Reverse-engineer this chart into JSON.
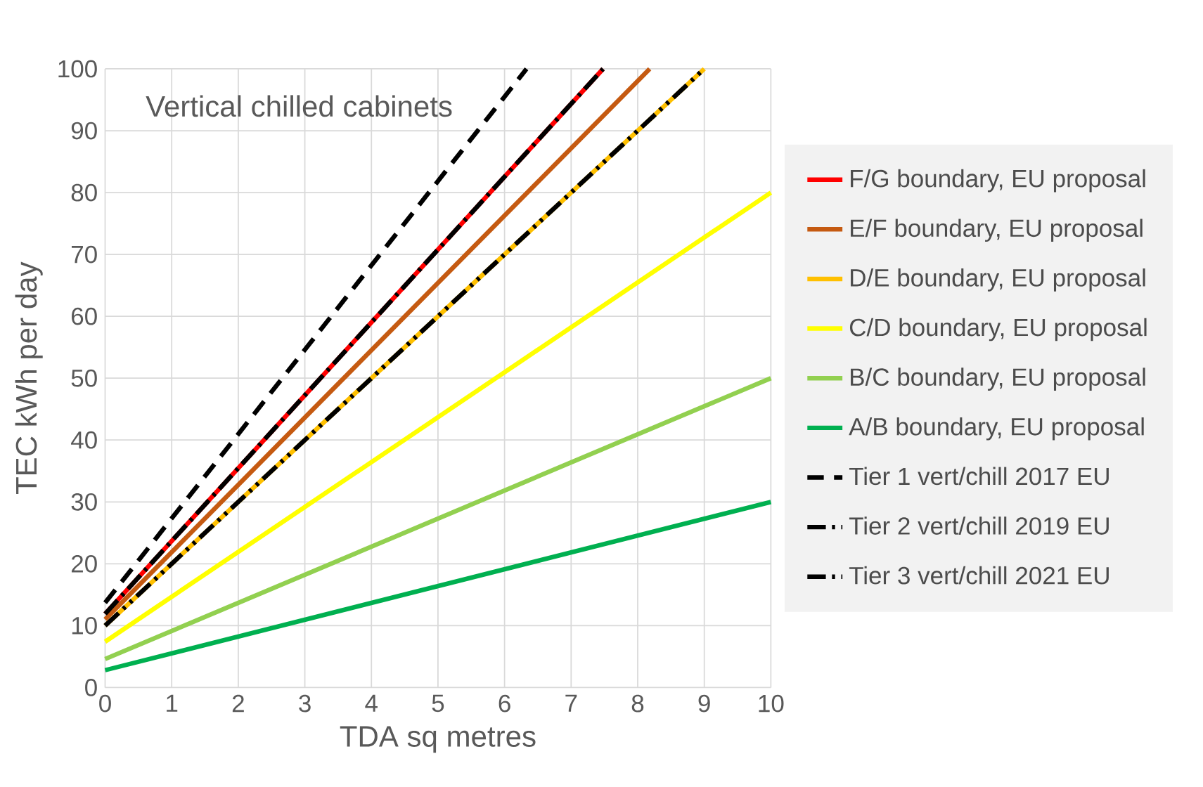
{
  "chart_data": {
    "type": "line",
    "xlabel": "TDA sq metres",
    "ylabel": "TEC  kWh per day",
    "annotations": [
      "Vertical chilled cabinets"
    ],
    "xlim": [
      0,
      10
    ],
    "ylim": [
      0,
      100
    ],
    "xticks": [
      0,
      1,
      2,
      3,
      4,
      5,
      6,
      7,
      8,
      9,
      10
    ],
    "yticks": [
      0,
      10,
      20,
      30,
      40,
      50,
      60,
      70,
      80,
      90,
      100
    ],
    "grid": true,
    "legend": "right",
    "marker": "none",
    "series": [
      {
        "name": "F/G boundary, EU proposal",
        "color": "#ff0000",
        "line_style": "solid",
        "x": [
          0,
          7.48
        ],
        "values": [
          11.9,
          100
        ]
      },
      {
        "name": "E/F boundary, EU proposal",
        "color": "#c55a11",
        "line_style": "solid",
        "x": [
          0,
          8.18
        ],
        "values": [
          11,
          100
        ]
      },
      {
        "name": "D/E boundary, EU proposal",
        "color": "#ffc000",
        "line_style": "solid",
        "x": [
          0,
          9
        ],
        "values": [
          10,
          100
        ]
      },
      {
        "name": "C/D boundary, EU proposal",
        "color": "#ffff00",
        "line_style": "solid",
        "x": [
          0,
          10
        ],
        "values": [
          7.4,
          80
        ]
      },
      {
        "name": "B/C boundary, EU proposal",
        "color": "#92d050",
        "line_style": "solid",
        "x": [
          0,
          10
        ],
        "values": [
          4.6,
          50
        ]
      },
      {
        "name": "A/B boundary, EU proposal",
        "color": "#00b050",
        "line_style": "solid",
        "x": [
          0,
          10
        ],
        "values": [
          2.8,
          30
        ]
      },
      {
        "name": "Tier 1 vert/chill 2017 EU",
        "color": "#000000",
        "line_style": "dashed",
        "x": [
          0,
          6.33
        ],
        "values": [
          13.7,
          100
        ]
      },
      {
        "name": "Tier 2 vert/chill 2019 EU",
        "color": "#000000",
        "line_style": "dashdot",
        "x": [
          0,
          7.48
        ],
        "values": [
          11.9,
          100
        ]
      },
      {
        "name": "Tier 3 vert/chill 2021 EU",
        "color": "#000000",
        "line_style": "dashdotdot",
        "x": [
          0,
          9
        ],
        "values": [
          10,
          100
        ]
      }
    ]
  }
}
